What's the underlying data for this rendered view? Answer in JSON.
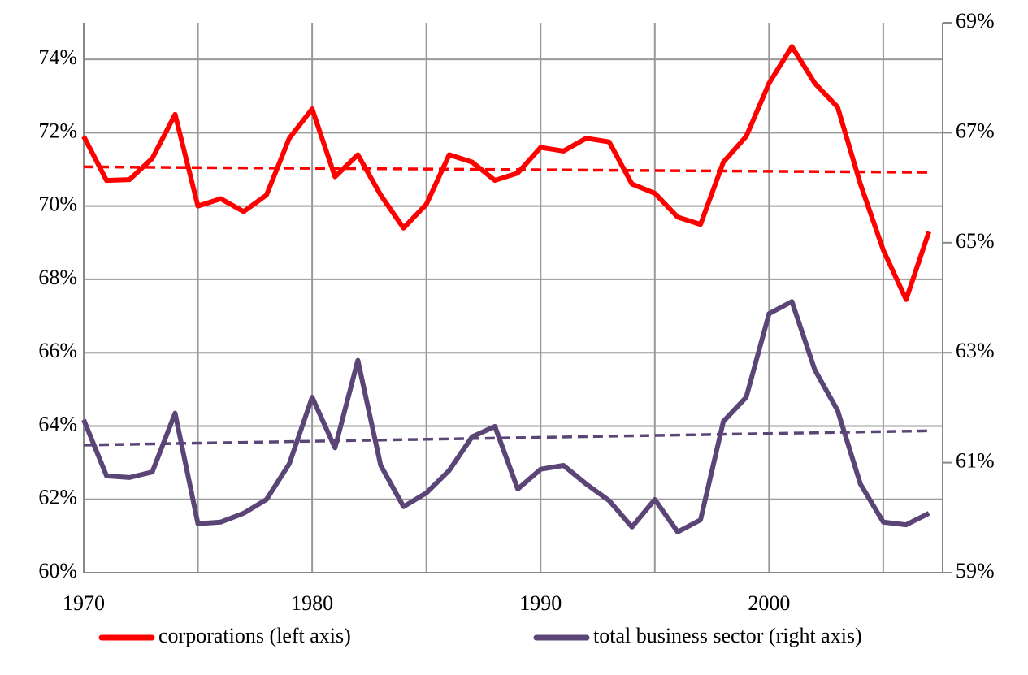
{
  "chart_data": {
    "type": "line",
    "x": [
      1970,
      1971,
      1972,
      1973,
      1974,
      1975,
      1976,
      1977,
      1978,
      1979,
      1980,
      1981,
      1982,
      1983,
      1984,
      1985,
      1986,
      1987,
      1988,
      1989,
      1990,
      1991,
      1992,
      1993,
      1994,
      1995,
      1996,
      1997,
      1998,
      1999,
      2000,
      2001,
      2002,
      2003,
      2004,
      2005,
      2006,
      2007
    ],
    "series": [
      {
        "name": "corporations (left axis)",
        "color": "#ff0000",
        "axis": "y",
        "values": [
          71.9,
          70.7,
          70.72,
          71.3,
          72.5,
          70.0,
          70.2,
          69.85,
          70.3,
          71.85,
          72.65,
          70.8,
          71.4,
          70.3,
          69.4,
          70.05,
          71.4,
          71.2,
          70.7,
          70.9,
          71.6,
          71.5,
          71.85,
          71.75,
          70.6,
          70.35,
          69.7,
          69.5,
          71.2,
          71.9,
          73.35,
          74.35,
          73.35,
          72.7,
          70.6,
          68.8,
          67.45,
          69.3
        ]
      },
      {
        "name": "total business sector (right axis)",
        "color": "#5b4577",
        "axis": "y2",
        "values": [
          61.78,
          60.76,
          60.73,
          60.83,
          61.9,
          59.89,
          59.92,
          60.08,
          60.33,
          60.98,
          62.19,
          61.27,
          62.86,
          60.95,
          60.2,
          60.45,
          60.86,
          61.47,
          61.66,
          60.52,
          60.88,
          60.95,
          60.61,
          60.31,
          59.83,
          60.33,
          59.74,
          59.96,
          61.75,
          62.19,
          63.71,
          63.93,
          62.69,
          61.95,
          60.61,
          59.92,
          59.87,
          60.08
        ]
      }
    ],
    "trendlines": [
      {
        "color": "#ff0000",
        "axis": "y",
        "x": [
          1970,
          2007
        ],
        "values": [
          71.07,
          70.92
        ]
      },
      {
        "color": "#5b4577",
        "axis": "y2",
        "x": [
          1970,
          2007
        ],
        "values": [
          61.32,
          61.58
        ]
      }
    ],
    "xlim": [
      1970,
      2007.6
    ],
    "xticks": [
      1970,
      1980,
      1990,
      2000
    ],
    "xgridticks": [
      1970,
      1975,
      1980,
      1985,
      1990,
      1995,
      2000,
      2005
    ],
    "ylim": [
      60,
      75
    ],
    "yticks": [
      {
        "value": 60,
        "label": "60%"
      },
      {
        "value": 62,
        "label": "62%"
      },
      {
        "value": 64,
        "label": "64%"
      },
      {
        "value": 66,
        "label": "66%"
      },
      {
        "value": 68,
        "label": "68%"
      },
      {
        "value": 70,
        "label": "70%"
      },
      {
        "value": 72,
        "label": "72%"
      },
      {
        "value": 74,
        "label": "74%"
      }
    ],
    "y2lim": [
      59,
      69
    ],
    "y2ticks": [
      {
        "value": 59,
        "label": "59%"
      },
      {
        "value": 61,
        "label": "61%"
      },
      {
        "value": 63,
        "label": "63%"
      },
      {
        "value": 65,
        "label": "65%"
      },
      {
        "value": 67,
        "label": "67%"
      },
      {
        "value": 69,
        "label": "69%"
      }
    ],
    "grid": true,
    "legend": "bottom"
  }
}
